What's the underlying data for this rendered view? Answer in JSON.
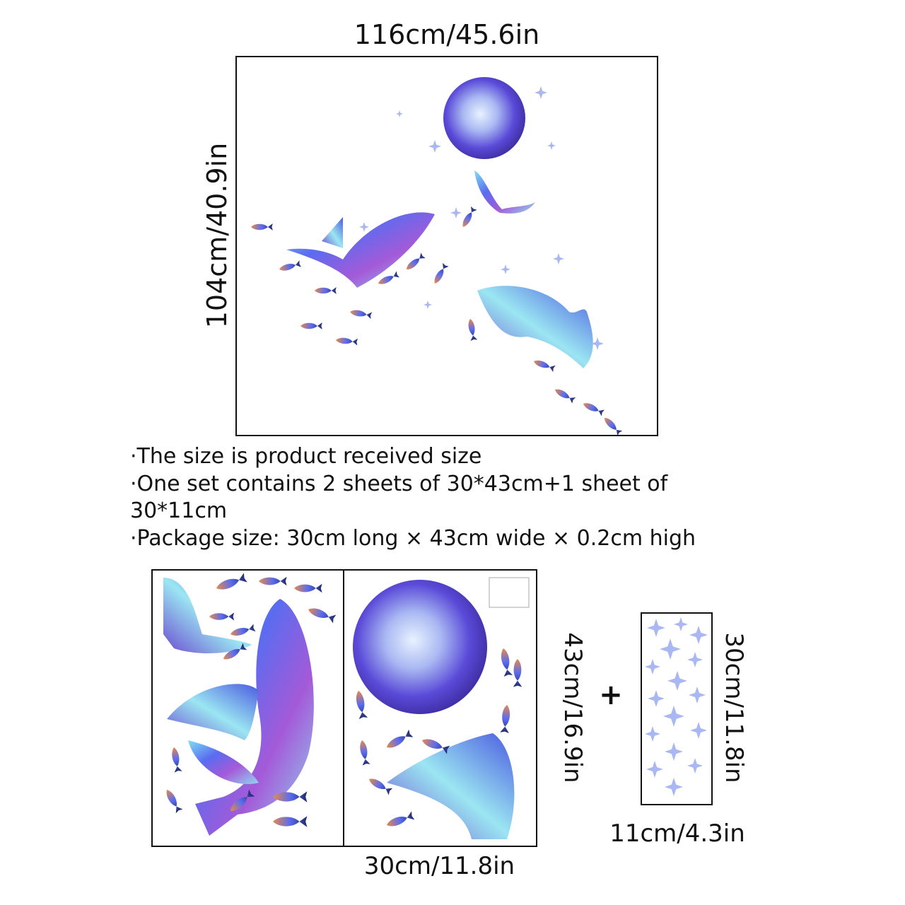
{
  "top_scene": {
    "width_label": "116cm/45.6in",
    "height_label": "104cm/40.9in"
  },
  "notes": [
    "·The size is product received size",
    "·One set contains 2 sheets of 30*43cm+1 sheet of",
    "30*11cm",
    "·Package size: 30cm long × 43cm wide × 0.2cm high"
  ],
  "sheets": {
    "large_width_label": "30cm/11.8in",
    "large_height_label": "43cm/16.9in",
    "plus_sign": "+",
    "small_height_label": "30cm/11.8in",
    "small_width_label": "11cm/4.3in"
  },
  "colors": {
    "outline": "#111111",
    "holo_blue": "#5a6cf0",
    "holo_cyan": "#7fe0f5",
    "holo_violet": "#a45ad8",
    "holo_orange": "#e8894a"
  }
}
